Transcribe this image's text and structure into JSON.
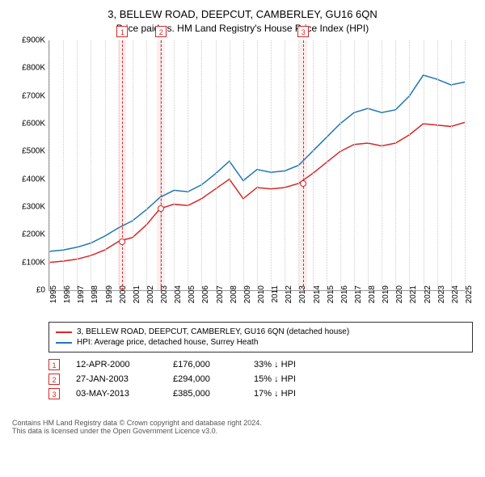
{
  "title": "3, BELLEW ROAD, DEEPCUT, CAMBERLEY, GU16 6QN",
  "subtitle": "Price paid vs. HM Land Registry's House Price Index (HPI)",
  "chart": {
    "type": "line",
    "background_color": "#ffffff",
    "grid_color": "#cccccc",
    "axis_color": "#999999",
    "label_fontsize": 10,
    "x": {
      "min": 1995,
      "max": 2025,
      "ticks": [
        1995,
        1996,
        1997,
        1998,
        1999,
        2000,
        2001,
        2002,
        2003,
        2004,
        2005,
        2006,
        2007,
        2008,
        2009,
        2010,
        2011,
        2012,
        2013,
        2014,
        2015,
        2016,
        2017,
        2018,
        2019,
        2020,
        2021,
        2022,
        2023,
        2024,
        2025
      ]
    },
    "y": {
      "min": 0,
      "max": 900,
      "unit": "£K",
      "ticks": [
        0,
        100,
        200,
        300,
        400,
        500,
        600,
        700,
        800,
        900
      ]
    },
    "series": [
      {
        "name": "3, BELLEW ROAD, DEEPCUT, CAMBERLEY, GU16 6QN (detached house)",
        "color": "#d62728",
        "line_width": 1.5,
        "data": [
          [
            1995,
            100
          ],
          [
            1996,
            105
          ],
          [
            1997,
            112
          ],
          [
            1998,
            125
          ],
          [
            1999,
            145
          ],
          [
            2000,
            176
          ],
          [
            2001,
            190
          ],
          [
            2002,
            235
          ],
          [
            2003,
            294
          ],
          [
            2004,
            310
          ],
          [
            2005,
            305
          ],
          [
            2006,
            330
          ],
          [
            2007,
            365
          ],
          [
            2008,
            400
          ],
          [
            2009,
            330
          ],
          [
            2010,
            370
          ],
          [
            2011,
            365
          ],
          [
            2012,
            370
          ],
          [
            2013,
            385
          ],
          [
            2014,
            420
          ],
          [
            2015,
            460
          ],
          [
            2016,
            500
          ],
          [
            2017,
            525
          ],
          [
            2018,
            530
          ],
          [
            2019,
            520
          ],
          [
            2020,
            530
          ],
          [
            2021,
            560
          ],
          [
            2022,
            600
          ],
          [
            2023,
            595
          ],
          [
            2024,
            590
          ],
          [
            2025,
            605
          ]
        ]
      },
      {
        "name": "HPI: Average price, detached house, Surrey Heath",
        "color": "#1f77b4",
        "line_width": 1.5,
        "data": [
          [
            1995,
            140
          ],
          [
            1996,
            145
          ],
          [
            1997,
            155
          ],
          [
            1998,
            170
          ],
          [
            1999,
            195
          ],
          [
            2000,
            225
          ],
          [
            2001,
            250
          ],
          [
            2002,
            290
          ],
          [
            2003,
            335
          ],
          [
            2004,
            360
          ],
          [
            2005,
            355
          ],
          [
            2006,
            380
          ],
          [
            2007,
            420
          ],
          [
            2008,
            465
          ],
          [
            2009,
            395
          ],
          [
            2010,
            435
          ],
          [
            2011,
            425
          ],
          [
            2012,
            430
          ],
          [
            2013,
            450
          ],
          [
            2014,
            500
          ],
          [
            2015,
            550
          ],
          [
            2016,
            600
          ],
          [
            2017,
            640
          ],
          [
            2018,
            655
          ],
          [
            2019,
            640
          ],
          [
            2020,
            650
          ],
          [
            2021,
            700
          ],
          [
            2022,
            775
          ],
          [
            2023,
            760
          ],
          [
            2024,
            740
          ],
          [
            2025,
            750
          ]
        ]
      }
    ],
    "markers": [
      {
        "n": "1",
        "x": 2000.28,
        "y": 176,
        "color": "#d62728",
        "band_color": "rgba(214,39,40,0.08)"
      },
      {
        "n": "2",
        "x": 2003.07,
        "y": 294,
        "color": "#d62728",
        "band_color": "rgba(214,39,40,0.08)"
      },
      {
        "n": "3",
        "x": 2013.34,
        "y": 385,
        "color": "#d62728",
        "band_color": "rgba(214,39,40,0.08)"
      }
    ]
  },
  "legend": [
    {
      "color": "#d62728",
      "label": "3, BELLEW ROAD, DEEPCUT, CAMBERLEY, GU16 6QN (detached house)"
    },
    {
      "color": "#1f77b4",
      "label": "HPI: Average price, detached house, Surrey Heath"
    }
  ],
  "events": [
    {
      "n": "1",
      "color": "#d62728",
      "date": "12-APR-2000",
      "price": "£176,000",
      "diff": "33% ↓ HPI"
    },
    {
      "n": "2",
      "color": "#d62728",
      "date": "27-JAN-2003",
      "price": "£294,000",
      "diff": "15% ↓ HPI"
    },
    {
      "n": "3",
      "color": "#d62728",
      "date": "03-MAY-2013",
      "price": "£385,000",
      "diff": "17% ↓ HPI"
    }
  ],
  "footer": {
    "line1": "Contains HM Land Registry data © Crown copyright and database right 2024.",
    "line2": "This data is licensed under the Open Government Licence v3.0."
  }
}
